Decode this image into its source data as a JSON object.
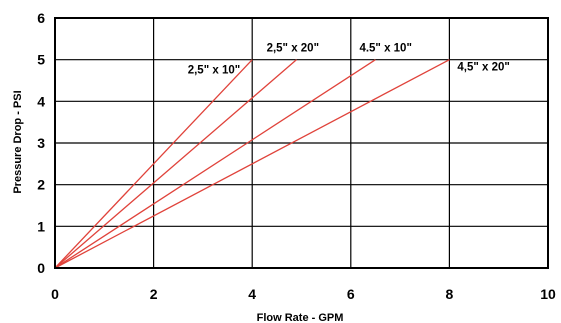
{
  "chart_data": {
    "type": "line",
    "xlabel": "Flow Rate - GPM",
    "ylabel": "Pressure Drop - PSI",
    "xlim": [
      0,
      10
    ],
    "ylim": [
      0,
      6
    ],
    "xticks": [
      0,
      2,
      4,
      6,
      8,
      10
    ],
    "yticks": [
      0,
      1,
      2,
      3,
      4,
      5,
      6
    ],
    "grid": true,
    "line_color": "#e0433b",
    "series": [
      {
        "name": "2,5\" x 10\"",
        "x": [
          0,
          4.0
        ],
        "y": [
          0,
          5
        ]
      },
      {
        "name": "2,5\" x 20\"",
        "x": [
          0,
          4.9
        ],
        "y": [
          0,
          5
        ]
      },
      {
        "name": "4.5\" x 10\"",
        "x": [
          0,
          6.5
        ],
        "y": [
          0,
          5
        ]
      },
      {
        "name": "4,5\" x 20\"",
        "x": [
          0,
          8.0
        ],
        "y": [
          0,
          5
        ]
      }
    ]
  }
}
